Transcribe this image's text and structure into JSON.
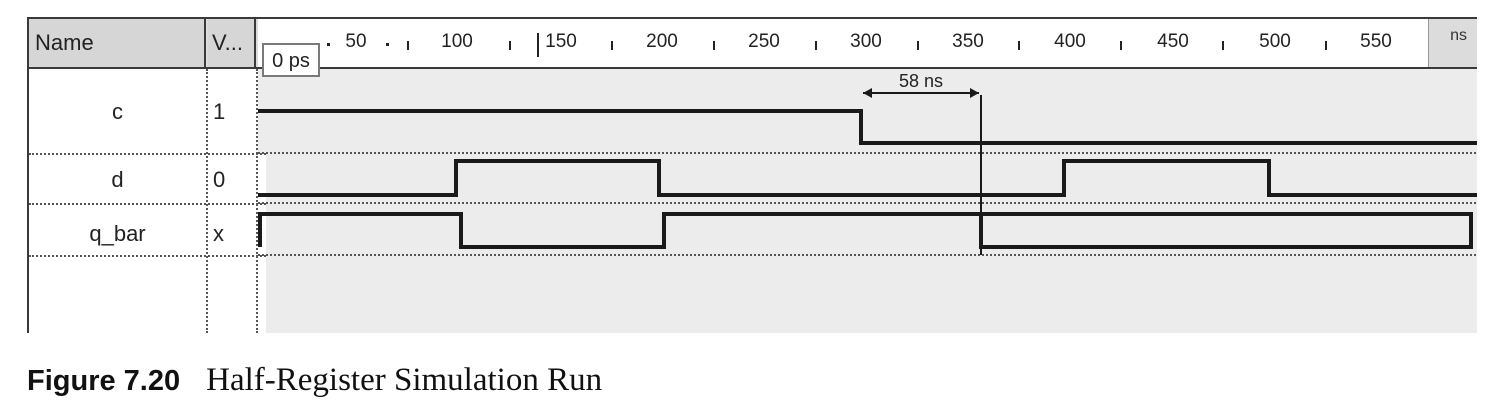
{
  "header": {
    "name_col": "Name",
    "value_col": "V...",
    "cursor_label": "0 ps",
    "unit": "ns"
  },
  "ruler": {
    "ticks": [
      "50",
      "100",
      "150",
      "200",
      "250",
      "300",
      "350",
      "400",
      "450",
      "500",
      "550"
    ]
  },
  "signals": [
    {
      "name": "c",
      "value": "1"
    },
    {
      "name": "d",
      "value": "0"
    },
    {
      "name": "q_bar",
      "value": "x"
    }
  ],
  "measurement": {
    "label": "58 ns"
  },
  "caption": {
    "number": "Figure 7.20",
    "title": "Half-Register Simulation Run"
  },
  "colors": {
    "wave": "#1a1a1a",
    "background_gray": "#ececec",
    "header_gray": "#dcdcdc"
  }
}
